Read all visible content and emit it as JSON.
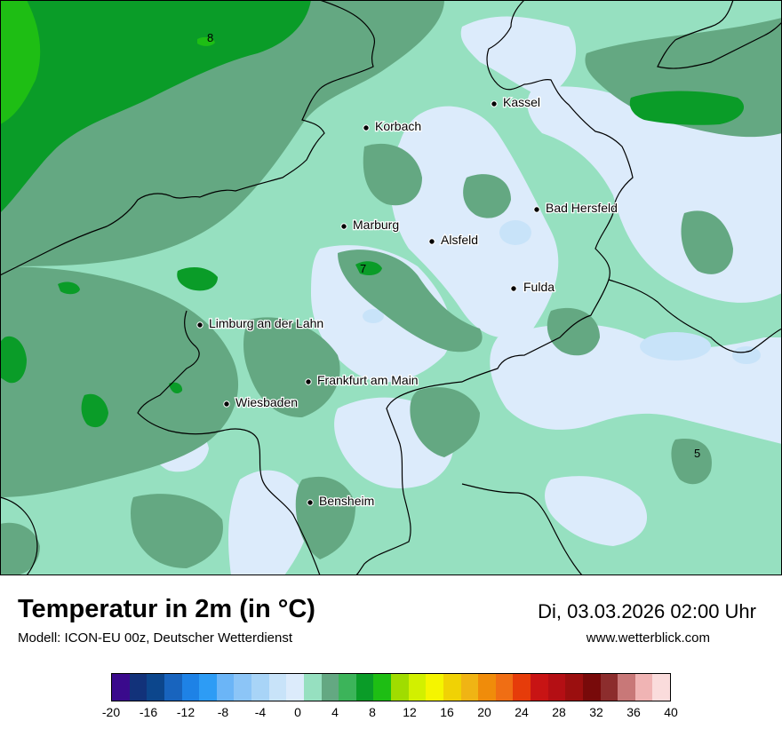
{
  "header": {
    "title": "Temperatur in 2m (in °C)",
    "model": "Modell: ICON-EU 00z, Deutscher Wetterdienst",
    "datetime": "Di, 03.03.2026 02:00 Uhr",
    "website": "www.wetterblick.com"
  },
  "cities": [
    {
      "name": "Kassel"
    },
    {
      "name": "Korbach"
    },
    {
      "name": "Bad Hersfeld"
    },
    {
      "name": "Marburg"
    },
    {
      "name": "Alsfeld"
    },
    {
      "name": "Fulda"
    },
    {
      "name": "Limburg an der Lahn"
    },
    {
      "name": "Frankfurt am Main"
    },
    {
      "name": "Wiesbaden"
    },
    {
      "name": "Bensheim"
    }
  ],
  "contour_labels": [
    "8",
    "7",
    "5"
  ],
  "legend": {
    "colors": [
      "#3a0a8c",
      "#12327a",
      "#0c468c",
      "#1864be",
      "#1e82e6",
      "#2d9cf5",
      "#6bb5f7",
      "#8cc5f7",
      "#a8d4f7",
      "#c8e3f9",
      "#dcebfb",
      "#96e0c0",
      "#64a882",
      "#3cb45a",
      "#0a9c28",
      "#1ebe14",
      "#a0dc00",
      "#d2f000",
      "#f5f500",
      "#f0d205",
      "#f0b414",
      "#f08c0a",
      "#f06e14",
      "#e63c0a",
      "#c81414",
      "#b40f14",
      "#9b0f0f",
      "#780a0a",
      "#8c2d2d",
      "#c87878",
      "#f0b4b4",
      "#fadcdc"
    ],
    "ticks": [
      "-20",
      "-16",
      "-12",
      "-8",
      "-4",
      "0",
      "4",
      "8",
      "12",
      "16",
      "20",
      "24",
      "28",
      "32",
      "36",
      "40"
    ]
  }
}
